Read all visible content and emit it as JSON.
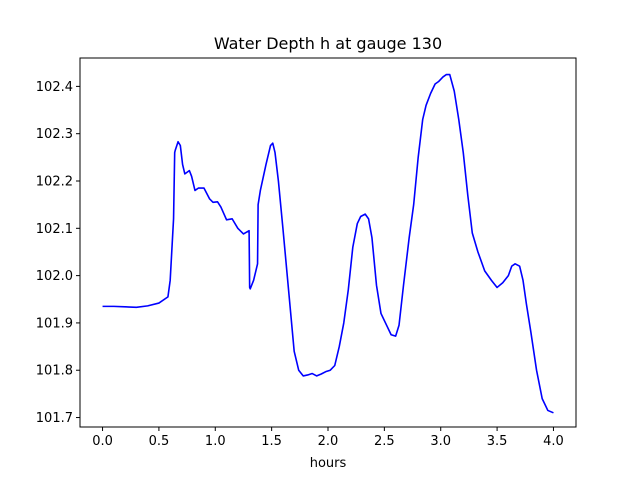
{
  "chart_data": {
    "type": "line",
    "title": "Water Depth h at gauge 130",
    "xlabel": "hours",
    "ylabel": "",
    "xlim": [
      -0.2,
      4.2
    ],
    "ylim": [
      101.68,
      102.46
    ],
    "xticks": [
      0.0,
      0.5,
      1.0,
      1.5,
      2.0,
      2.5,
      3.0,
      3.5,
      4.0
    ],
    "xtick_labels": [
      "0.0",
      "0.5",
      "1.0",
      "1.5",
      "2.0",
      "2.5",
      "3.0",
      "3.5",
      "4.0"
    ],
    "yticks": [
      101.7,
      101.8,
      101.9,
      102.0,
      102.1,
      102.2,
      102.3,
      102.4
    ],
    "ytick_labels": [
      "101.7",
      "101.8",
      "101.9",
      "102.0",
      "102.1",
      "102.2",
      "102.3",
      "102.4"
    ],
    "grid": false,
    "series": [
      {
        "color": "#0000ff",
        "x": [
          0.0,
          0.1,
          0.2,
          0.3,
          0.4,
          0.5,
          0.58,
          0.6,
          0.63,
          0.64,
          0.645,
          0.67,
          0.69,
          0.71,
          0.73,
          0.77,
          0.79,
          0.82,
          0.85,
          0.9,
          0.95,
          0.98,
          1.02,
          1.05,
          1.1,
          1.15,
          1.2,
          1.25,
          1.3,
          1.305,
          1.31,
          1.34,
          1.375,
          1.38,
          1.4,
          1.45,
          1.49,
          1.51,
          1.53,
          1.56,
          1.6,
          1.65,
          1.7,
          1.74,
          1.78,
          1.82,
          1.86,
          1.9,
          1.94,
          1.98,
          2.02,
          2.06,
          2.1,
          2.14,
          2.18,
          2.22,
          2.26,
          2.29,
          2.33,
          2.36,
          2.39,
          2.43,
          2.47,
          2.52,
          2.56,
          2.6,
          2.63,
          2.67,
          2.72,
          2.76,
          2.8,
          2.84,
          2.87,
          2.91,
          2.95,
          2.98,
          3.0,
          3.02,
          3.05,
          3.08,
          3.12,
          3.16,
          3.2,
          3.24,
          3.28,
          3.33,
          3.39,
          3.45,
          3.5,
          3.55,
          3.6,
          3.63,
          3.66,
          3.7,
          3.73,
          3.76,
          3.8,
          3.85,
          3.9,
          3.95,
          4.0
        ],
        "y": [
          101.935,
          101.935,
          101.934,
          101.933,
          101.936,
          101.942,
          101.955,
          101.99,
          102.12,
          102.26,
          102.265,
          102.283,
          102.275,
          102.235,
          102.215,
          102.222,
          102.21,
          102.18,
          102.185,
          102.185,
          102.162,
          102.155,
          102.156,
          102.145,
          102.118,
          102.12,
          102.1,
          102.088,
          102.095,
          101.975,
          101.972,
          101.99,
          102.025,
          102.15,
          102.18,
          102.235,
          102.275,
          102.28,
          102.26,
          102.2,
          102.1,
          101.97,
          101.84,
          101.8,
          101.788,
          101.79,
          101.793,
          101.788,
          101.792,
          101.797,
          101.8,
          101.81,
          101.85,
          101.9,
          101.97,
          102.06,
          102.11,
          102.125,
          102.13,
          102.12,
          102.08,
          101.98,
          101.92,
          101.895,
          101.875,
          101.872,
          101.895,
          101.98,
          102.08,
          102.15,
          102.25,
          102.33,
          102.36,
          102.385,
          102.405,
          102.41,
          102.415,
          102.42,
          102.425,
          102.425,
          102.39,
          102.33,
          102.26,
          102.17,
          102.09,
          102.05,
          102.01,
          101.99,
          101.975,
          101.985,
          102.0,
          102.02,
          102.025,
          102.02,
          101.99,
          101.94,
          101.88,
          101.8,
          101.74,
          101.715,
          101.71
        ]
      }
    ]
  }
}
